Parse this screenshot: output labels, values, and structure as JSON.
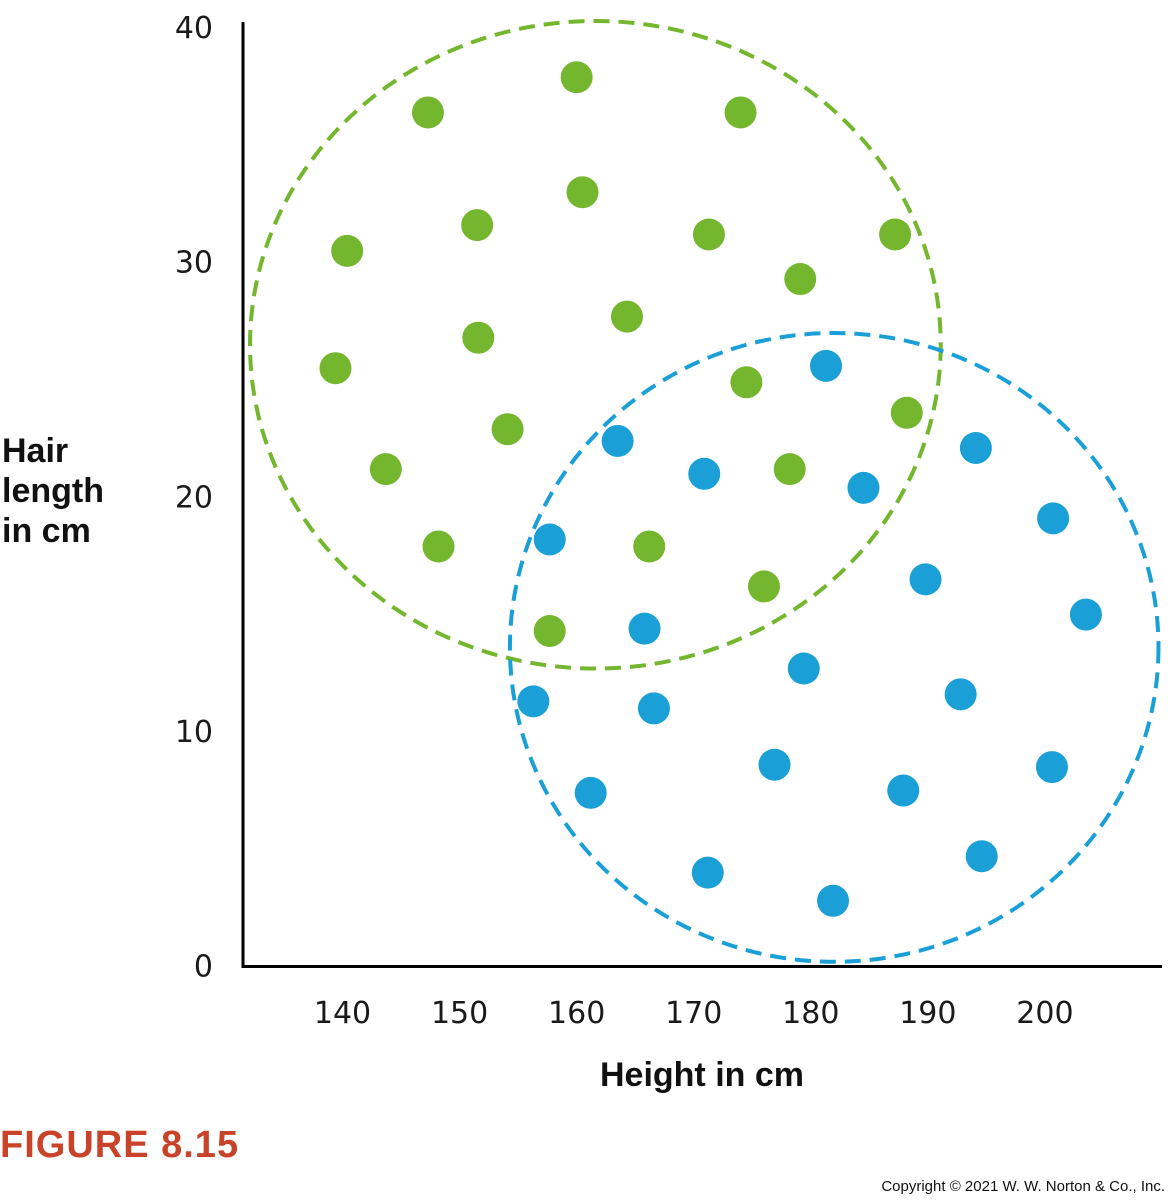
{
  "figure_label": "FIGURE 8.15",
  "copyright": "Copyright © 2021 W. W. Norton & Co., Inc.",
  "colors": {
    "green": "#74b72e",
    "blue": "#1aa0d6",
    "figure_label": "#c8432a",
    "axis": "#000000"
  },
  "chart_data": {
    "type": "scatter",
    "title": "",
    "xlabel": "Height in cm",
    "ylabel_lines": [
      "Hair",
      "length",
      "in cm"
    ],
    "xlim": [
      131.5,
      210
    ],
    "ylim": [
      0,
      40
    ],
    "x_ticks": [
      140,
      150,
      160,
      170,
      180,
      190,
      200
    ],
    "y_ticks": [
      0,
      10,
      20,
      30,
      40
    ],
    "grid": false,
    "series": [
      {
        "color": "#74b72e",
        "points": [
          {
            "x": 160.0,
            "y": 37.9
          },
          {
            "x": 147.3,
            "y": 36.4
          },
          {
            "x": 174.0,
            "y": 36.4
          },
          {
            "x": 160.5,
            "y": 33.0
          },
          {
            "x": 151.5,
            "y": 31.6
          },
          {
            "x": 171.3,
            "y": 31.2
          },
          {
            "x": 187.2,
            "y": 31.2
          },
          {
            "x": 140.4,
            "y": 30.5
          },
          {
            "x": 179.1,
            "y": 29.3
          },
          {
            "x": 164.3,
            "y": 27.7
          },
          {
            "x": 151.6,
            "y": 26.8
          },
          {
            "x": 139.4,
            "y": 25.5
          },
          {
            "x": 174.5,
            "y": 24.9
          },
          {
            "x": 188.2,
            "y": 23.6
          },
          {
            "x": 154.1,
            "y": 22.9
          },
          {
            "x": 143.7,
            "y": 21.2
          },
          {
            "x": 178.2,
            "y": 21.2
          },
          {
            "x": 148.2,
            "y": 17.9
          },
          {
            "x": 166.2,
            "y": 17.9
          },
          {
            "x": 176.0,
            "y": 16.2
          },
          {
            "x": 157.7,
            "y": 14.3
          }
        ]
      },
      {
        "color": "#1aa0d6",
        "points": [
          {
            "x": 181.3,
            "y": 25.6
          },
          {
            "x": 163.5,
            "y": 22.4
          },
          {
            "x": 194.1,
            "y": 22.1
          },
          {
            "x": 170.9,
            "y": 21.0
          },
          {
            "x": 184.5,
            "y": 20.4
          },
          {
            "x": 200.7,
            "y": 19.1
          },
          {
            "x": 157.7,
            "y": 18.2
          },
          {
            "x": 189.8,
            "y": 16.5
          },
          {
            "x": 203.5,
            "y": 15.0
          },
          {
            "x": 165.8,
            "y": 14.4
          },
          {
            "x": 179.4,
            "y": 12.7
          },
          {
            "x": 192.8,
            "y": 11.6
          },
          {
            "x": 156.3,
            "y": 11.3
          },
          {
            "x": 166.6,
            "y": 11.0
          },
          {
            "x": 176.9,
            "y": 8.6
          },
          {
            "x": 200.6,
            "y": 8.5
          },
          {
            "x": 187.9,
            "y": 7.5
          },
          {
            "x": 161.2,
            "y": 7.4
          },
          {
            "x": 194.6,
            "y": 4.7
          },
          {
            "x": 171.2,
            "y": 4.0
          },
          {
            "x": 181.9,
            "y": 2.8
          }
        ]
      }
    ],
    "clusters": [
      {
        "color": "#74b72e",
        "cx": 161.6,
        "cy": 26.5,
        "rx": 29.5,
        "ry": 13.8
      },
      {
        "color": "#1aa0d6",
        "cx": 182.0,
        "cy": 13.6,
        "rx": 27.7,
        "ry": 13.4
      }
    ]
  }
}
